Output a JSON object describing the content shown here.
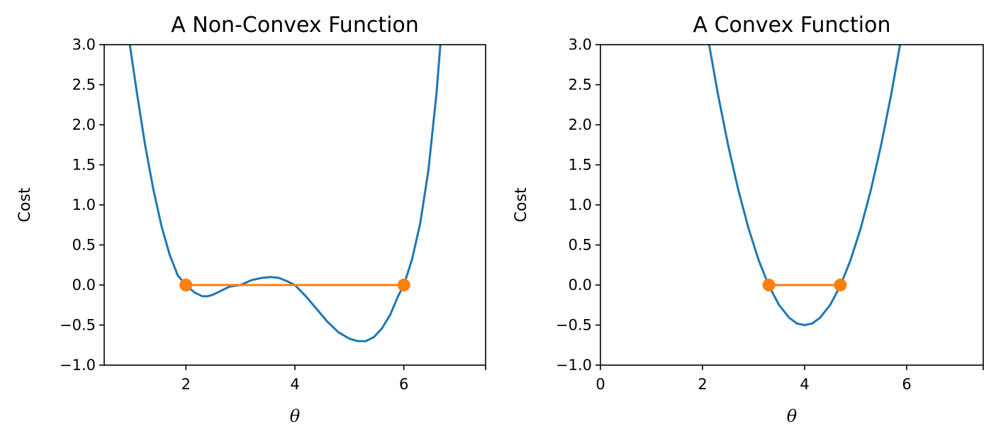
{
  "chart_data": [
    {
      "type": "line",
      "title": "A Non-Convex Function",
      "xlabel": "θ",
      "ylabel": "Cost",
      "xlim": [
        0.5,
        7.5
      ],
      "ylim": [
        -1.0,
        3.0
      ],
      "x_ticks": [
        2,
        4,
        6
      ],
      "x_tick_labels": [
        "2",
        "4",
        "6"
      ],
      "y_ticks": [
        -1.0,
        -0.5,
        0.0,
        0.5,
        1.0,
        1.5,
        2.0,
        2.5,
        3.0
      ],
      "y_tick_labels": [
        "−1.0",
        "−0.5",
        "0.0",
        "0.5",
        "1.0",
        "1.5",
        "2.0",
        "2.5",
        "3.0"
      ],
      "grid": false,
      "series": [
        {
          "color": "#1f77b4",
          "kind": "line",
          "x": [
            0.97,
            1.1,
            1.25,
            1.4,
            1.55,
            1.7,
            1.85,
            2.0,
            2.15,
            2.3,
            2.4,
            2.5,
            2.65,
            2.8,
            3.0,
            3.2,
            3.4,
            3.55,
            3.7,
            3.85,
            4.0,
            4.2,
            4.4,
            4.6,
            4.8,
            5.0,
            5.15,
            5.3,
            5.45,
            5.6,
            5.75,
            5.9,
            6.0,
            6.15,
            6.3,
            6.45,
            6.6,
            6.67
          ],
          "y": [
            3.0,
            2.4,
            1.75,
            1.2,
            0.74,
            0.38,
            0.12,
            0.0,
            -0.09,
            -0.14,
            -0.14,
            -0.12,
            -0.07,
            -0.02,
            0.0,
            0.06,
            0.09,
            0.1,
            0.09,
            0.05,
            0.0,
            -0.14,
            -0.3,
            -0.46,
            -0.59,
            -0.67,
            -0.7,
            -0.7,
            -0.65,
            -0.54,
            -0.37,
            -0.13,
            0.0,
            0.32,
            0.77,
            1.43,
            2.4,
            3.0
          ]
        },
        {
          "color": "#ff7f0e",
          "kind": "line-markers",
          "x": [
            2,
            6
          ],
          "y": [
            0,
            0
          ]
        }
      ]
    },
    {
      "type": "line",
      "title": "A Convex Function",
      "xlabel": "θ",
      "ylabel": "Cost",
      "xlim": [
        0,
        7.5
      ],
      "ylim": [
        -1.0,
        3.0
      ],
      "x_ticks": [
        0,
        2,
        4,
        6
      ],
      "x_tick_labels": [
        "0",
        "2",
        "4",
        "6"
      ],
      "y_ticks": [
        -1.0,
        -0.5,
        0.0,
        0.5,
        1.0,
        1.5,
        2.0,
        2.5,
        3.0
      ],
      "y_tick_labels": [
        "−1.0",
        "−0.5",
        "0.0",
        "0.5",
        "1.0",
        "1.5",
        "2.0",
        "2.5",
        "3.0"
      ],
      "grid": false,
      "series": [
        {
          "color": "#1f77b4",
          "kind": "line",
          "x": [
            2.13,
            2.3,
            2.5,
            2.7,
            2.9,
            3.1,
            3.3,
            3.5,
            3.7,
            3.85,
            4.0,
            4.15,
            4.3,
            4.5,
            4.7,
            4.9,
            5.1,
            5.3,
            5.5,
            5.7,
            5.87
          ],
          "y": [
            3.0,
            2.39,
            1.75,
            1.19,
            0.71,
            0.31,
            -0.01,
            -0.25,
            -0.41,
            -0.48,
            -0.5,
            -0.48,
            -0.41,
            -0.25,
            -0.01,
            0.31,
            0.71,
            1.19,
            1.75,
            2.39,
            3.0
          ]
        },
        {
          "color": "#ff7f0e",
          "kind": "line-markers",
          "x": [
            3.3,
            4.7
          ],
          "y": [
            0,
            0
          ]
        }
      ]
    }
  ]
}
